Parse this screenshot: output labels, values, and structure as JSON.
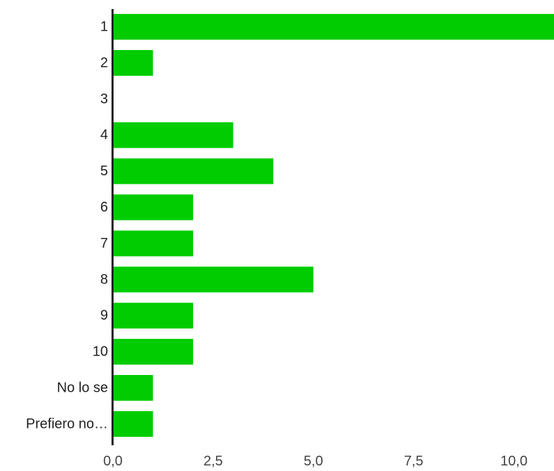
{
  "chart_data": {
    "type": "bar",
    "orientation": "horizontal",
    "categories": [
      "1",
      "2",
      "3",
      "4",
      "5",
      "6",
      "7",
      "8",
      "9",
      "10",
      "No lo se",
      "Prefiero no…"
    ],
    "values": [
      11,
      1,
      0,
      3,
      4,
      2,
      2,
      5,
      2,
      2,
      1,
      1
    ],
    "xlim": [
      0,
      11
    ],
    "xticks": [
      0,
      2.5,
      5,
      7.5,
      10
    ],
    "xtick_labels": [
      "0,0",
      "2,5",
      "5,0",
      "7,5",
      "10,0"
    ],
    "bar_color": "#00cc00",
    "axis_color": "#222222",
    "grid": false,
    "title": "",
    "xlabel": "",
    "ylabel": ""
  }
}
